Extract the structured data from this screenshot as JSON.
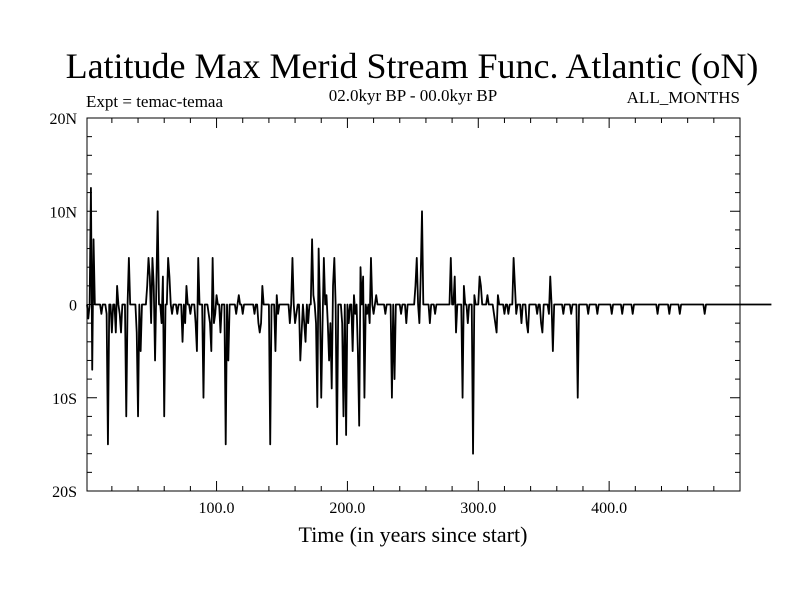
{
  "chart_data": {
    "type": "line",
    "title": "Latitude Max Merid Stream Func. Atlantic (oN)",
    "left_label": "Expt = temac-temaa",
    "center_label": "02.0kyr BP - 00.0kyr BP",
    "right_label": "ALL_MONTHS",
    "xlabel": "Time (in years since start)",
    "ylabel": "",
    "xlim": [
      1,
      500
    ],
    "ylim": [
      -20,
      20
    ],
    "x_ticks": [
      100,
      200,
      300,
      400
    ],
    "x_tick_labels": [
      "100.0",
      "200.0",
      "300.0",
      "400.0"
    ],
    "y_ticks": [
      -20,
      -10,
      0,
      10,
      20
    ],
    "y_tick_labels": [
      "20S",
      "10S",
      "0",
      "10N",
      "20N"
    ],
    "series": [
      {
        "name": "Latitude Max Merid Stream Func. Atlantic",
        "x_start": 1,
        "x_step": 1,
        "values": [
          0,
          -1.5,
          0,
          12.5,
          -7,
          7,
          0,
          0,
          0,
          0,
          0,
          -1,
          0,
          0,
          0,
          -1,
          -15,
          0,
          0,
          -3,
          0,
          0,
          -3,
          2,
          0,
          -1,
          -3,
          0,
          0,
          0,
          -12,
          0,
          5,
          0,
          0,
          0,
          0,
          0,
          -3,
          -12,
          0,
          -5,
          0,
          0,
          0,
          0,
          2,
          5,
          3,
          -2,
          5,
          2,
          -6,
          2,
          10,
          0,
          0,
          -2,
          3,
          -12,
          0,
          0,
          5,
          3,
          0,
          -1,
          0,
          0,
          0,
          -1,
          0,
          0,
          0,
          -4,
          0,
          -2,
          2,
          0,
          0,
          -1,
          0,
          0,
          0,
          -2,
          -5,
          5,
          0,
          0,
          0,
          -10,
          0,
          0,
          0,
          -1,
          -2,
          -5,
          5,
          -2,
          -1,
          1,
          0,
          0,
          -3,
          0,
          0,
          0,
          -15,
          0,
          -6,
          0,
          0,
          0,
          0,
          0,
          -1,
          0,
          1,
          0,
          0,
          -1,
          0,
          0,
          0,
          0,
          0,
          0,
          0,
          0,
          -1,
          0,
          0,
          -2,
          -3,
          -2,
          2,
          0,
          0,
          0,
          0,
          0,
          -15,
          0,
          0,
          0,
          -5,
          1,
          -1,
          0,
          0,
          0,
          0,
          0,
          0,
          0,
          0,
          -2,
          0,
          5,
          0,
          -2,
          -1,
          0,
          0,
          -6,
          -3,
          0,
          -2,
          -4,
          0,
          -2,
          0,
          0,
          7,
          1,
          0,
          -2,
          -11,
          6,
          0,
          -10,
          -2,
          5,
          0,
          1,
          -2,
          -6,
          -2,
          -9,
          2,
          5,
          0,
          -15,
          0,
          0,
          0,
          -2,
          -12,
          0,
          -14,
          0,
          -2,
          0,
          0,
          -5,
          1,
          -1,
          0,
          -5,
          -13,
          4,
          0,
          3,
          -10,
          0,
          -1,
          0,
          -2,
          5,
          0,
          -1,
          0,
          1,
          0,
          0,
          0,
          0,
          0,
          0,
          -1,
          0,
          0,
          0,
          0,
          -10,
          0,
          -8,
          0,
          0,
          0,
          0,
          -1,
          0,
          0,
          0,
          -2,
          0,
          0,
          0,
          0,
          0,
          0,
          2,
          5,
          0,
          -2,
          3,
          10,
          0,
          0,
          0,
          0,
          0,
          -2,
          0,
          0,
          0,
          -1,
          0,
          0,
          0,
          0,
          0,
          0,
          0,
          0,
          0,
          0,
          0,
          5,
          0,
          0,
          3,
          -3,
          0,
          0,
          0,
          0,
          -10,
          2,
          0,
          0,
          -2,
          0,
          0,
          0,
          -16,
          1,
          0,
          0,
          0,
          3,
          2,
          0,
          0,
          0,
          0,
          1,
          0,
          0,
          0,
          0,
          -1,
          -2,
          -3,
          1,
          0,
          0,
          0,
          0,
          -1,
          0,
          0,
          -1,
          0,
          0,
          0,
          5,
          2,
          -1,
          0,
          0,
          0,
          -2,
          0,
          0,
          0,
          -2,
          -3,
          0,
          0,
          0,
          0,
          0,
          0,
          -1,
          0,
          0,
          -2,
          -3,
          0,
          0,
          0,
          0,
          -1,
          3,
          0,
          -5,
          0,
          0,
          0,
          0,
          0,
          0,
          0,
          -1,
          0,
          0,
          0,
          0,
          0,
          -1,
          0,
          0,
          0,
          0,
          -10,
          0,
          0,
          0,
          0,
          0,
          0,
          0,
          -1,
          0,
          0,
          0,
          0,
          0,
          0,
          -1,
          0,
          0,
          0,
          0,
          0,
          0,
          0,
          0,
          0,
          0,
          -1,
          0,
          0,
          0,
          0,
          0,
          0,
          0,
          -1,
          0,
          0,
          0,
          0,
          0,
          0,
          0,
          -1,
          0,
          0,
          0,
          0,
          0,
          0,
          0,
          0,
          0,
          0,
          0,
          0,
          0,
          0,
          0,
          0,
          0,
          0,
          -1,
          0,
          0,
          0,
          0,
          0,
          0,
          0,
          0,
          -1,
          0,
          0,
          0,
          0,
          0,
          0,
          0,
          -1,
          0,
          0,
          0,
          0,
          0,
          0,
          0,
          0,
          0,
          0,
          0,
          0,
          0,
          0,
          0,
          0,
          0,
          0,
          -1,
          0,
          0,
          0,
          0,
          0,
          0,
          0,
          0,
          0,
          0,
          0,
          0,
          0,
          0,
          0,
          0,
          0,
          0,
          0,
          0,
          0,
          0,
          0,
          0,
          0,
          0,
          0,
          0,
          0,
          0,
          0,
          0,
          0,
          0,
          0,
          0,
          0,
          0,
          0,
          0,
          0,
          0,
          0,
          0,
          0,
          0,
          0,
          0,
          0,
          0,
          0
        ]
      }
    ]
  }
}
